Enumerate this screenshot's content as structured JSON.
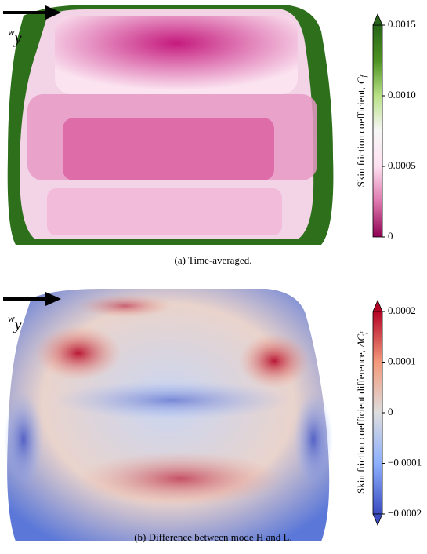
{
  "panels": [
    {
      "wind_symbol": "w",
      "wind_sub": "y",
      "colorbar": {
        "label": "Skin friction coefficient,",
        "symbol": "C",
        "symbol_sub": "f",
        "lim": [
          0,
          0.0015
        ],
        "extend": "max",
        "ticks": [
          0,
          0.0005,
          {
            "value": 0.001,
            "label": "0.0010"
          },
          0.0015
        ],
        "colors": [
          "#8e0152",
          "#de77ae",
          "#fde0ef",
          "#f7f7f7",
          "#b8e186",
          "#4d9221",
          "#276419"
        ]
      },
      "caption": "(a) Time-averaged."
    },
    {
      "wind_symbol": "w",
      "wind_sub": "y",
      "colorbar": {
        "label": "Skin friction coefficient difference,",
        "symbol": "ΔC",
        "symbol_sub": "f",
        "lim": [
          -0.0002,
          0.0002
        ],
        "extend": "both",
        "ticks": [
          {
            "value": -0.0002,
            "label": "−0.0002"
          },
          {
            "value": -0.0001,
            "label": "−0.0001"
          },
          0,
          0.0001,
          0.0002
        ],
        "colors": [
          "#3b4cc0",
          "#8db0fe",
          "#dddddd",
          "#f49a7b",
          "#b40426"
        ]
      },
      "caption": "(b) Difference between mode H and L."
    }
  ]
}
